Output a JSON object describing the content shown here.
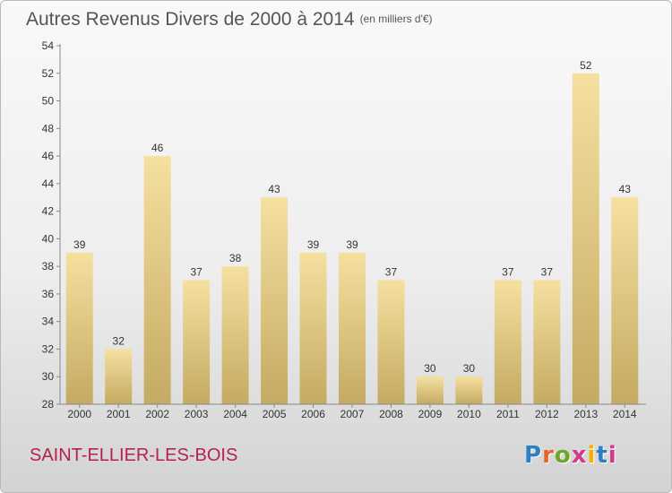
{
  "header": {
    "title": "Autres Revenus Divers de 2000 à 2014",
    "subtitle": "(en milliers d'€)"
  },
  "footer": {
    "commune": "SAINT-ELLIER-LES-BOIS",
    "brand": "Proxiti",
    "brand_colors": [
      "#2f7fc1",
      "#e8622a",
      "#6aa82a",
      "#d43a8a",
      "#f0b400",
      "#2f7fc1",
      "#d43a8a"
    ]
  },
  "colors": {
    "bar_top": "#f6e0a0",
    "bar_bottom": "#c4aa62",
    "label_text": "#333333",
    "commune_text": "#b5224b"
  },
  "chart_data": {
    "type": "bar",
    "categories": [
      "2000",
      "2001",
      "2002",
      "2003",
      "2004",
      "2005",
      "2006",
      "2007",
      "2008",
      "2009",
      "2010",
      "2011",
      "2012",
      "2013",
      "2014"
    ],
    "values": [
      39,
      32,
      46,
      37,
      38,
      43,
      39,
      39,
      37,
      30,
      30,
      37,
      37,
      52,
      43
    ],
    "data_labels": [
      "39",
      "32",
      "46",
      "37",
      "38",
      "43",
      "39",
      "39",
      "37",
      "30",
      "30",
      "37",
      "37",
      "52",
      "43"
    ],
    "ylim": [
      28,
      54
    ],
    "yticks": [
      28,
      30,
      32,
      34,
      36,
      38,
      40,
      42,
      44,
      46,
      48,
      50,
      52,
      54
    ],
    "grid": false
  }
}
